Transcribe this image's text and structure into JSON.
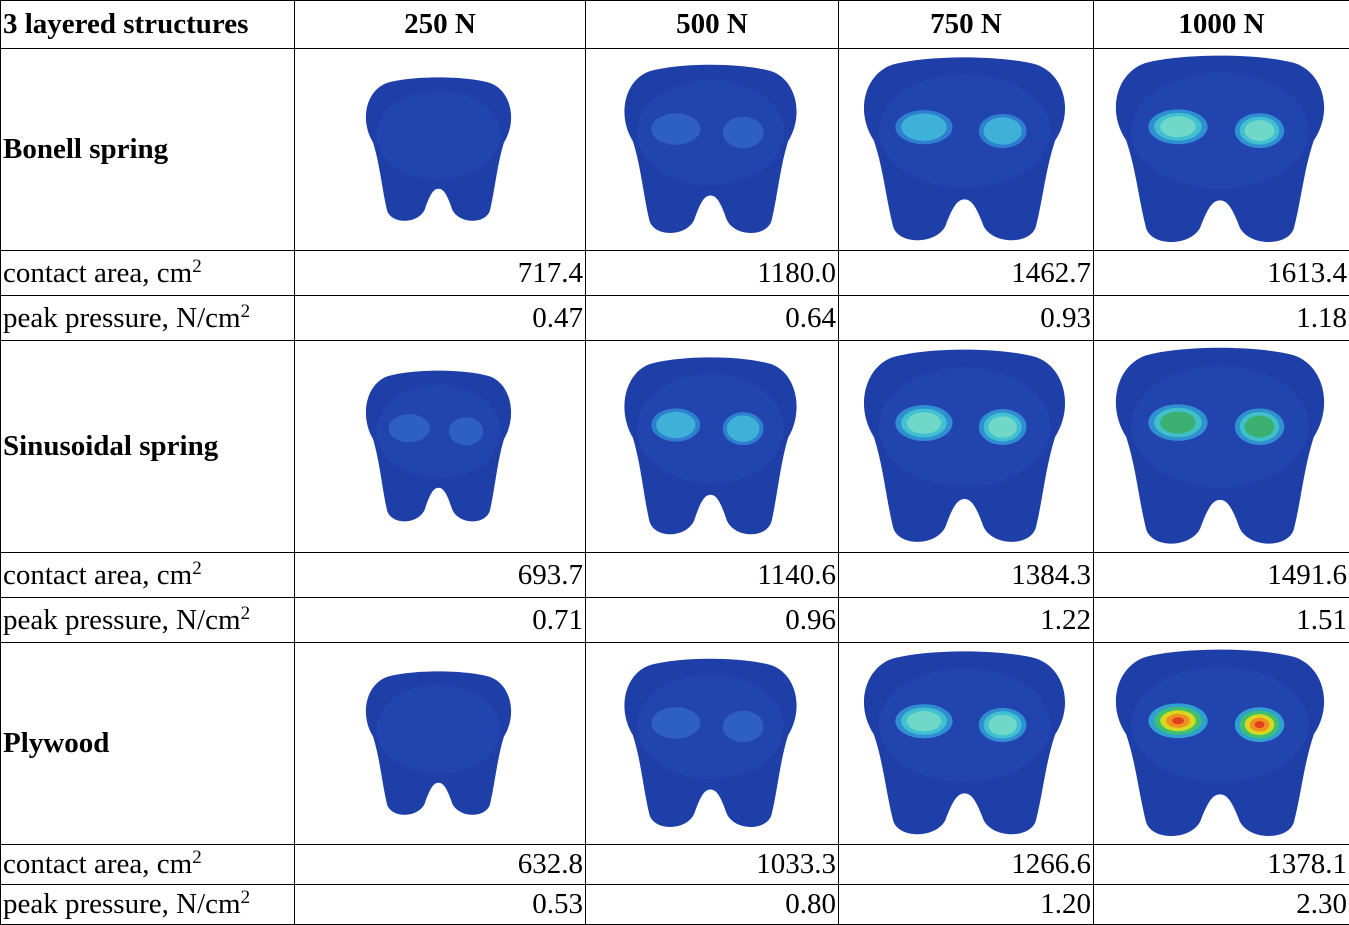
{
  "header": [
    "3 layered structures",
    "250 N",
    "500 N",
    "750 N",
    "1000 N"
  ],
  "structures": [
    {
      "name": "Bonell spring",
      "contact_area": {
        "label": "contact area, cm",
        "label_sup": "2",
        "values": [
          "717.4",
          "1180.0",
          "1462.7",
          "1613.4"
        ]
      },
      "peak_pressure": {
        "label": "peak pressure, N/cm",
        "label_sup": "2",
        "values": [
          "0.47",
          "0.64",
          "0.93",
          "1.18"
        ]
      }
    },
    {
      "name": "Sinusoidal spring",
      "contact_area": {
        "label": "contact area, cm",
        "label_sup": "2",
        "values": [
          "693.7",
          "1140.6",
          "1384.3",
          "1491.6"
        ]
      },
      "peak_pressure": {
        "label": "peak pressure, N/cm",
        "label_sup": "2",
        "values": [
          "0.71",
          "0.96",
          "1.22",
          "1.51"
        ]
      }
    },
    {
      "name": "Plywood",
      "contact_area": {
        "label": "contact area, cm",
        "label_sup": "2",
        "values": [
          "632.8",
          "1033.3",
          "1266.6",
          "1378.1"
        ]
      },
      "peak_pressure": {
        "label": "peak pressure, N/cm",
        "label_sup": "2",
        "values": [
          "0.53",
          "0.80",
          "1.20",
          "2.30"
        ]
      }
    }
  ]
}
